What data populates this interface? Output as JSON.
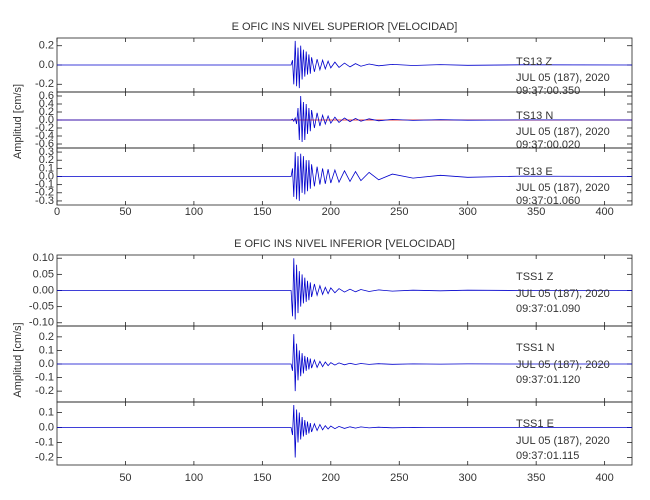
{
  "chart_data": [
    {
      "type": "line",
      "title": "E OFIC INS NIVEL SUPERIOR [VELOCIDAD]",
      "y_label": "Amplitud [cm/s]",
      "xlim": [
        0,
        420
      ],
      "xticks": [
        0,
        50,
        100,
        150,
        200,
        250,
        300,
        350,
        400
      ],
      "x": [
        0,
        171,
        172,
        173,
        174,
        175,
        176,
        177,
        178,
        179,
        180,
        181,
        182,
        183,
        184,
        185,
        186,
        188,
        190,
        192,
        194,
        196,
        198,
        200,
        203,
        206,
        210,
        214,
        218,
        222,
        228,
        235,
        245,
        260,
        280,
        300,
        340,
        420
      ],
      "panels": [
        {
          "ylim": [
            -0.28,
            0.28
          ],
          "yticks": [
            0.2,
            {
              "value": 0,
              "label": "0.0"
            },
            -0.2
          ],
          "annotation": [
            "TS13   Z",
            "JUL  05  (187),  2020",
            "09:37:00.350"
          ],
          "series": [
            {
              "color": "#0000cc",
              "values": [
                0,
                0,
                0.05,
                -0.2,
                0.25,
                -0.22,
                0.18,
                -0.24,
                0.2,
                -0.15,
                0.16,
                -0.12,
                0.14,
                -0.1,
                0.11,
                -0.09,
                0.08,
                -0.07,
                0.06,
                -0.05,
                0.05,
                -0.04,
                0.04,
                -0.03,
                0.03,
                -0.025,
                0.02,
                -0.02,
                0.015,
                -0.012,
                0.01,
                -0.008,
                0.006,
                -0.005,
                0.004,
                -0.003,
                0.002,
                0
              ]
            }
          ]
        },
        {
          "ylim": [
            -0.7,
            0.7
          ],
          "yticks": [
            0.6,
            0.4,
            0.2,
            {
              "value": 0,
              "label": "0.0"
            },
            -0.2,
            -0.4,
            -0.6
          ],
          "baseline_color": "#dd0000",
          "annotation": [
            "TS13   N",
            "JUL  05  (187),  2020",
            "09:37:00.020"
          ],
          "series": [
            {
              "color": "#0000cc",
              "values": [
                0,
                0,
                0.02,
                -0.03,
                0.05,
                -0.1,
                0.3,
                -0.5,
                0.6,
                -0.55,
                0.45,
                -0.5,
                0.4,
                -0.35,
                0.3,
                -0.28,
                0.25,
                -0.2,
                0.18,
                -0.15,
                0.12,
                -0.1,
                0.1,
                -0.08,
                0.07,
                -0.06,
                0.05,
                -0.04,
                0.04,
                -0.03,
                0.03,
                -0.02,
                0.015,
                -0.01,
                0.008,
                -0.005,
                0.003,
                0
              ]
            }
          ]
        },
        {
          "ylim": [
            -0.35,
            0.35
          ],
          "yticks": [
            0.3,
            0.2,
            0.1,
            {
              "value": 0,
              "label": "0.0"
            },
            -0.1,
            -0.2,
            -0.3
          ],
          "annotation": [
            "TS13   E",
            "JUL  05  (187),  2020",
            "09:37:01.060"
          ],
          "series": [
            {
              "color": "#0000cc",
              "values": [
                0,
                0,
                0.1,
                -0.25,
                0.3,
                -0.28,
                0.25,
                -0.3,
                0.28,
                -0.2,
                0.25,
                -0.22,
                0.2,
                -0.18,
                0.2,
                -0.15,
                0.15,
                -0.12,
                0.12,
                -0.1,
                0.1,
                -0.09,
                0.09,
                -0.08,
                0.08,
                -0.07,
                0.07,
                -0.06,
                0.06,
                -0.05,
                0.05,
                -0.04,
                0.03,
                -0.02,
                0.015,
                -0.01,
                0.005,
                0
              ]
            }
          ]
        }
      ]
    },
    {
      "type": "line",
      "title": "E OFIC INS NIVEL INFERIOR [VELOCIDAD]",
      "y_label": "Amplitud [cm/s]",
      "xlim": [
        0,
        420
      ],
      "xticks": [
        50,
        100,
        150,
        200,
        250,
        300,
        350,
        400
      ],
      "x": [
        0,
        171,
        172,
        173,
        174,
        175,
        176,
        177,
        178,
        179,
        180,
        181,
        182,
        183,
        184,
        185,
        186,
        188,
        190,
        192,
        194,
        196,
        198,
        200,
        203,
        206,
        210,
        214,
        218,
        222,
        228,
        235,
        245,
        260,
        280,
        300,
        340,
        420
      ],
      "panels": [
        {
          "ylim": [
            -0.11,
            0.11
          ],
          "yticks": [
            {
              "value": 0.1,
              "label": "0.10"
            },
            {
              "value": 0.05,
              "label": "0.05"
            },
            {
              "value": 0,
              "label": "0.00"
            },
            {
              "value": -0.05,
              "label": "-0.05"
            },
            {
              "value": -0.1,
              "label": "-0.10"
            }
          ],
          "annotation": [
            "TSS1   Z",
            "JUL  05  (187),  2020",
            "09:37:01.090"
          ],
          "series": [
            {
              "color": "#0000cc",
              "values": [
                0,
                0,
                -0.08,
                0.1,
                -0.09,
                0.08,
                -0.07,
                0.06,
                -0.05,
                0.05,
                -0.04,
                0.04,
                -0.035,
                0.03,
                -0.03,
                0.025,
                -0.02,
                0.02,
                -0.015,
                0.015,
                -0.012,
                0.01,
                -0.01,
                0.008,
                -0.007,
                0.006,
                -0.005,
                0.004,
                -0.004,
                0.003,
                -0.003,
                0.002,
                -0.002,
                0.001,
                -0.001,
                0.001,
                0,
                0
              ]
            }
          ]
        },
        {
          "ylim": [
            -0.28,
            0.28
          ],
          "yticks": [
            0.2,
            0.1,
            {
              "value": 0,
              "label": "0.0"
            },
            -0.1,
            -0.2
          ],
          "annotation": [
            "TSS1   N",
            "JUL  05  (187),  2020",
            "09:37:01.120"
          ],
          "series": [
            {
              "color": "#0000cc",
              "values": [
                0,
                0,
                -0.05,
                0.22,
                -0.2,
                0.15,
                -0.12,
                0.1,
                -0.09,
                0.08,
                -0.07,
                0.06,
                -0.05,
                0.05,
                -0.04,
                0.04,
                -0.03,
                0.03,
                -0.025,
                0.02,
                -0.02,
                0.015,
                -0.012,
                0.01,
                -0.008,
                0.008,
                -0.006,
                0.005,
                -0.004,
                0.004,
                -0.003,
                0.002,
                -0.002,
                0.001,
                -0.001,
                0.001,
                0,
                0
              ]
            }
          ]
        },
        {
          "ylim": [
            -0.25,
            0.17
          ],
          "yticks": [
            0.1,
            {
              "value": 0,
              "label": "0.0"
            },
            -0.1,
            -0.2
          ],
          "annotation": [
            "TSS1   E",
            "JUL  05  (187),  2020",
            "09:37:01.115"
          ],
          "series": [
            {
              "color": "#0000cc",
              "values": [
                0,
                0,
                -0.05,
                0.15,
                -0.2,
                0.12,
                -0.1,
                0.1,
                -0.08,
                0.07,
                -0.06,
                0.05,
                -0.05,
                0.04,
                -0.04,
                0.03,
                -0.03,
                0.025,
                -0.02,
                0.02,
                -0.015,
                0.012,
                -0.01,
                0.01,
                -0.008,
                0.007,
                -0.006,
                0.005,
                -0.004,
                0.004,
                -0.003,
                0.002,
                -0.002,
                0.001,
                -0.001,
                0.001,
                0,
                0
              ]
            }
          ]
        }
      ]
    }
  ]
}
